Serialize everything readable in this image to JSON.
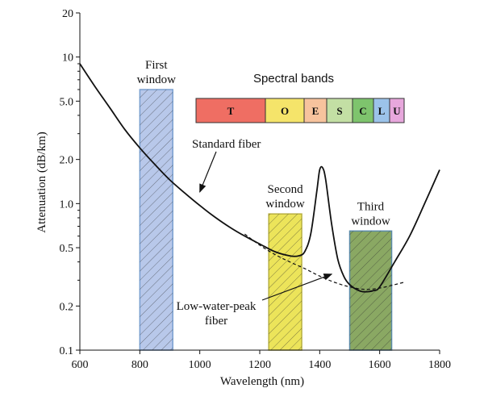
{
  "chart_data": {
    "type": "line",
    "xlabel": "Wavelength (nm)",
    "ylabel": "Attenuation (dB/km)",
    "xlim": [
      600,
      1800
    ],
    "ylim": [
      0.1,
      20
    ],
    "y_scale": "log",
    "x_ticks": [
      600,
      800,
      1000,
      1200,
      1400,
      1600,
      1800
    ],
    "x_tick_labels": [
      "600",
      "800",
      "1000",
      "1200",
      "1400",
      "1600",
      "1800"
    ],
    "y_ticks": [
      0.1,
      0.2,
      0.5,
      1.0,
      2.0,
      5.0,
      10,
      20
    ],
    "y_tick_labels": [
      "0.1",
      "0.2",
      "0.5",
      "1.0",
      "2.0",
      "5.0",
      "10",
      "20"
    ],
    "grid": false,
    "series": [
      {
        "label": "Standard fiber",
        "style": "solid",
        "color": "#111111",
        "x": [
          600,
          650,
          700,
          750,
          800,
          850,
          900,
          950,
          1000,
          1050,
          1100,
          1150,
          1200,
          1250,
          1300,
          1330,
          1350,
          1370,
          1390,
          1400,
          1410,
          1420,
          1440,
          1460,
          1480,
          1500,
          1530,
          1550,
          1580,
          1600,
          1650,
          1700,
          1750,
          1800
        ],
        "y": [
          9.0,
          6.3,
          4.5,
          3.2,
          2.4,
          1.85,
          1.45,
          1.18,
          0.97,
          0.81,
          0.69,
          0.6,
          0.53,
          0.47,
          0.44,
          0.44,
          0.47,
          0.62,
          1.2,
          1.7,
          1.75,
          1.45,
          0.72,
          0.42,
          0.32,
          0.28,
          0.255,
          0.25,
          0.255,
          0.27,
          0.4,
          0.6,
          1.0,
          1.7
        ]
      },
      {
        "label": "Low-water-peak fiber",
        "style": "dashed",
        "color": "#111111",
        "x": [
          1150,
          1200,
          1250,
          1300,
          1350,
          1400,
          1450,
          1500,
          1550,
          1600,
          1650,
          1680
        ],
        "y": [
          0.62,
          0.52,
          0.45,
          0.4,
          0.36,
          0.32,
          0.29,
          0.27,
          0.26,
          0.265,
          0.28,
          0.29
        ]
      }
    ],
    "windows": [
      {
        "title_lines": [
          "First",
          "window"
        ],
        "x_start": 800,
        "x_end": 910,
        "y_top": 6.0,
        "fill": "#b8c8ea",
        "stroke": "#7aa0d0"
      },
      {
        "title_lines": [
          "Second",
          "window"
        ],
        "x_start": 1230,
        "x_end": 1340,
        "y_top": 0.85,
        "fill": "#ece45a",
        "stroke": "#b8b040"
      },
      {
        "title_lines": [
          "Third",
          "window"
        ],
        "x_start": 1500,
        "x_end": 1640,
        "y_top": 0.65,
        "fill": "#8aa863",
        "stroke": "#5a8aa8"
      }
    ],
    "annotations": [
      {
        "text_lines": [
          "Standard fiber"
        ],
        "arrow_target": [
          1000,
          1.2
        ]
      },
      {
        "text_lines": [
          "Low-water-peak",
          "fiber"
        ],
        "arrow_target": [
          1440,
          0.33
        ]
      }
    ],
    "spectral_bands": {
      "title": "Spectral bands",
      "bands": [
        {
          "letter": "T",
          "color": "#ef6e63"
        },
        {
          "letter": "O",
          "color": "#f5e46a"
        },
        {
          "letter": "E",
          "color": "#f7c39d"
        },
        {
          "letter": "S",
          "color": "#c3dfa4"
        },
        {
          "letter": "C",
          "color": "#7ec46d"
        },
        {
          "letter": "L",
          "color": "#9cc3ea"
        },
        {
          "letter": "U",
          "color": "#e7a7dc"
        }
      ]
    }
  }
}
